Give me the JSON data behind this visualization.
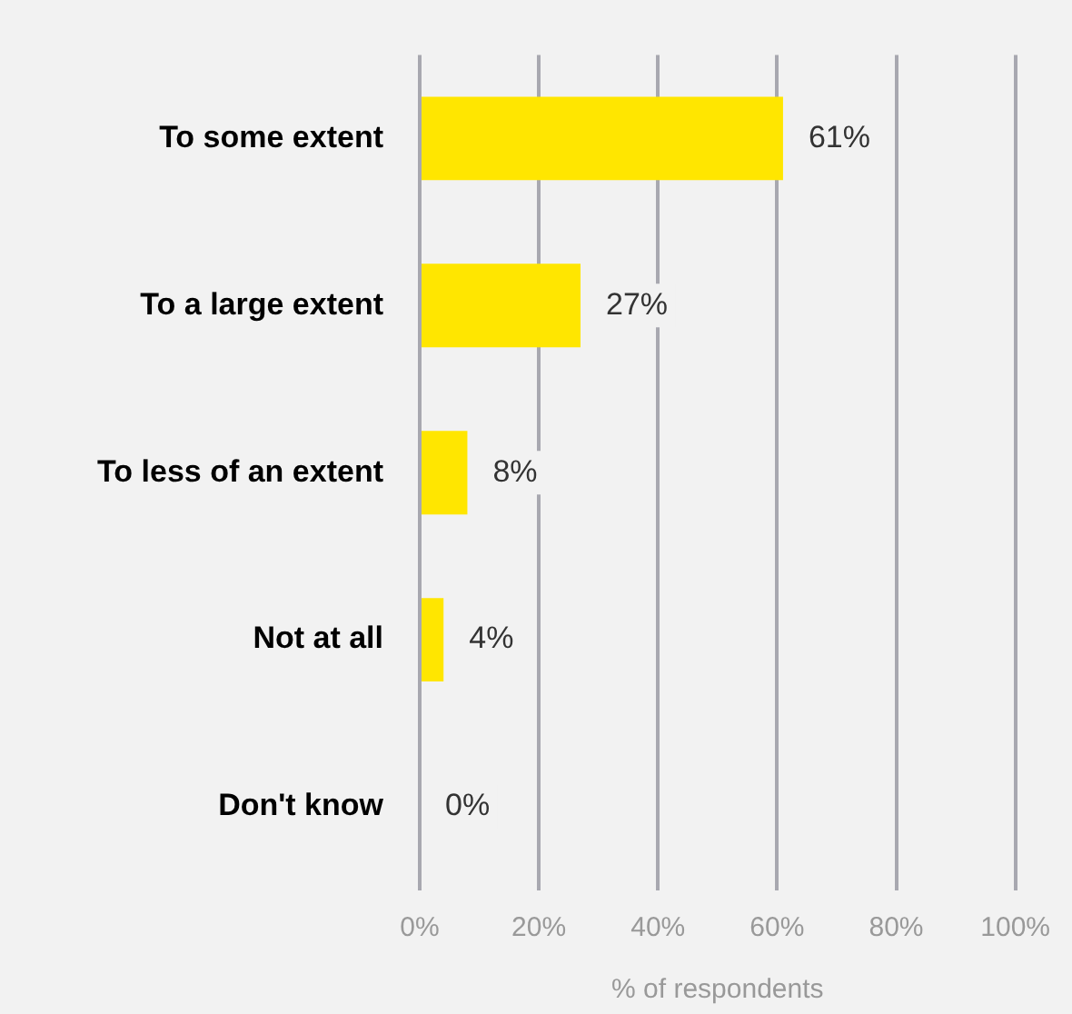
{
  "chart_data": {
    "type": "bar",
    "orientation": "horizontal",
    "categories": [
      "To some extent",
      "To a large extent",
      "To less of an extent",
      "Not at all",
      "Don't know"
    ],
    "values": [
      61,
      27,
      8,
      4,
      0
    ],
    "color": "#ffe600",
    "value_labels": [
      "61%",
      "27%",
      "8%",
      "4%",
      "0%"
    ],
    "xlabel": "% of respondents",
    "xlim": [
      0,
      100
    ],
    "xticks": [
      {
        "value": 0,
        "label": "0%"
      },
      {
        "value": 20,
        "label": "20%"
      },
      {
        "value": 40,
        "label": "40%"
      },
      {
        "value": 60,
        "label": "60%"
      },
      {
        "value": 80,
        "label": "80%"
      },
      {
        "value": 100,
        "label": "100%"
      }
    ],
    "grid": "x",
    "legend": false
  }
}
